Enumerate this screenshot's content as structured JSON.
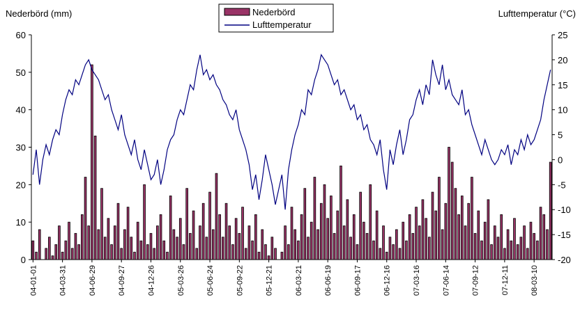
{
  "chart_data": {
    "type": "bar-line",
    "y_label": "Nederbörd (mm)",
    "y2_label": "Lufttemperatur (°C)",
    "categories": [
      "04-01-01",
      null,
      null,
      null,
      null,
      null,
      null,
      null,
      null,
      "04-03-31",
      null,
      null,
      null,
      null,
      null,
      null,
      null,
      null,
      "04-06-29",
      null,
      null,
      null,
      null,
      null,
      null,
      null,
      null,
      "04-09-27",
      null,
      null,
      null,
      null,
      null,
      null,
      null,
      null,
      "04-12-26",
      null,
      null,
      null,
      null,
      null,
      null,
      null,
      null,
      "05-03-26",
      null,
      null,
      null,
      null,
      null,
      null,
      null,
      null,
      "05-06-24",
      null,
      null,
      null,
      null,
      null,
      null,
      null,
      null,
      "05-09-22",
      null,
      null,
      null,
      null,
      null,
      null,
      null,
      null,
      "05-12-21",
      null,
      null,
      null,
      null,
      null,
      null,
      null,
      null,
      "06-03-21",
      null,
      null,
      null,
      null,
      null,
      null,
      null,
      null,
      "06-06-19",
      null,
      null,
      null,
      null,
      null,
      null,
      null,
      null,
      "06-09-17",
      null,
      null,
      null,
      null,
      null,
      null,
      null,
      null,
      "06-12-16",
      null,
      null,
      null,
      null,
      null,
      null,
      null,
      null,
      "07-03-16",
      null,
      null,
      null,
      null,
      null,
      null,
      null,
      null,
      "07-06-14",
      null,
      null,
      null,
      null,
      null,
      null,
      null,
      null,
      "07-09-12",
      null,
      null,
      null,
      null,
      null,
      null,
      null,
      null,
      "07-12-11",
      null,
      null,
      null,
      null,
      null,
      null,
      null,
      null,
      "08-03-10",
      null,
      null,
      null,
      null,
      null
    ],
    "series": [
      {
        "name": "Nederbörd",
        "color": "#993366",
        "values": [
          5,
          2,
          8,
          0,
          3,
          6,
          1,
          4,
          9,
          2,
          5,
          10,
          3,
          7,
          4,
          12,
          22,
          9,
          52,
          33,
          8,
          19,
          6,
          11,
          4,
          9,
          15,
          3,
          8,
          14,
          6,
          2,
          10,
          5,
          20,
          4,
          7,
          3,
          9,
          12,
          5,
          2,
          17,
          8,
          6,
          11,
          4,
          19,
          7,
          13,
          3,
          9,
          15,
          6,
          18,
          8,
          23,
          12,
          6,
          15,
          9,
          4,
          11,
          7,
          14,
          3,
          9,
          5,
          12,
          2,
          8,
          4,
          1,
          6,
          3,
          0,
          2,
          9,
          4,
          14,
          8,
          5,
          12,
          19,
          6,
          10,
          22,
          8,
          15,
          20,
          11,
          17,
          7,
          13,
          25,
          9,
          16,
          6,
          12,
          4,
          18,
          10,
          7,
          20,
          5,
          13,
          3,
          9,
          2,
          6,
          4,
          8,
          3,
          10,
          5,
          12,
          7,
          14,
          9,
          16,
          11,
          6,
          18,
          13,
          22,
          8,
          15,
          30,
          26,
          19,
          12,
          17,
          9,
          15,
          22,
          7,
          13,
          5,
          10,
          16,
          4,
          9,
          6,
          12,
          3,
          8,
          5,
          11,
          4,
          6,
          9,
          3,
          10,
          7,
          5,
          14,
          12,
          8,
          26
        ]
      },
      {
        "name": "Lufttemperatur",
        "color": "#000080",
        "axis": "y2",
        "values": [
          -3,
          2,
          -5,
          0,
          3,
          1,
          4,
          6,
          5,
          9,
          12,
          14,
          13,
          16,
          15,
          17,
          19,
          20,
          18,
          17,
          16,
          14,
          12,
          13,
          10,
          8,
          6,
          9,
          5,
          3,
          1,
          4,
          0,
          -2,
          2,
          -1,
          -4,
          -3,
          0,
          -5,
          -2,
          2,
          4,
          5,
          8,
          10,
          9,
          12,
          15,
          14,
          18,
          21,
          17,
          18,
          16,
          17,
          15,
          14,
          12,
          11,
          9,
          8,
          10,
          6,
          4,
          2,
          -1,
          -6,
          -3,
          -8,
          -4,
          1,
          -2,
          -5,
          -9,
          -6,
          -3,
          -10,
          -2,
          2,
          5,
          7,
          10,
          9,
          14,
          13,
          16,
          18,
          21,
          20,
          19,
          17,
          15,
          16,
          13,
          14,
          12,
          10,
          11,
          8,
          9,
          6,
          7,
          4,
          3,
          1,
          4,
          -2,
          -6,
          2,
          -1,
          3,
          6,
          1,
          4,
          8,
          9,
          12,
          14,
          11,
          15,
          13,
          20,
          17,
          15,
          19,
          14,
          16,
          13,
          12,
          11,
          14,
          9,
          10,
          7,
          5,
          3,
          1,
          4,
          2,
          0,
          -1,
          0,
          2,
          1,
          3,
          -1,
          2,
          1,
          4,
          2,
          5,
          3,
          4,
          6,
          8,
          12,
          15,
          18
        ]
      }
    ],
    "ylim": [
      0,
      60
    ],
    "yticks": [
      0,
      10,
      20,
      30,
      40,
      50,
      60
    ],
    "y2lim": [
      -20,
      25
    ],
    "y2ticks": [
      -20,
      -15,
      -10,
      -5,
      0,
      5,
      10,
      15,
      20,
      25
    ],
    "legend": "top"
  }
}
